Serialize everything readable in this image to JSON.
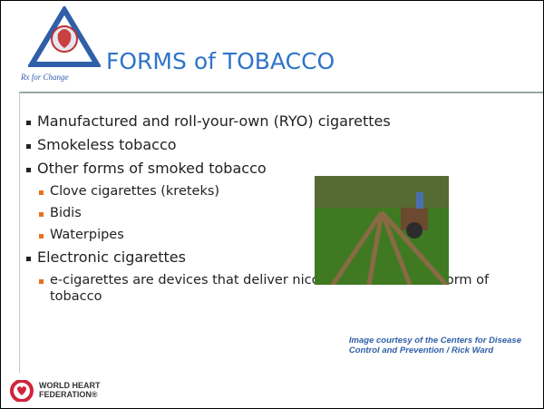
{
  "header": {
    "title": "FORMS of TOBACCO",
    "logo_text": "Rx for Change"
  },
  "bullets": [
    {
      "text": "Manufactured and roll-your-own (RYO) cigarettes",
      "children": []
    },
    {
      "text": "Smokeless tobacco",
      "children": []
    },
    {
      "text": "Other forms of smoked tobacco",
      "children": [
        "Clove cigarettes (kreteks)",
        "Bidis",
        "Waterpipes"
      ]
    },
    {
      "text": "Electronic cigarettes",
      "children": [
        "e-cigarettes are devices that deliver nicotine and are not a form of tobacco"
      ]
    }
  ],
  "caption": [
    "Image courtesy of the Centers for Disease",
    "Control and Prevention / Rick Ward"
  ],
  "footer": {
    "logo_text": [
      "WORLD HEART",
      "FEDERATION®"
    ]
  }
}
